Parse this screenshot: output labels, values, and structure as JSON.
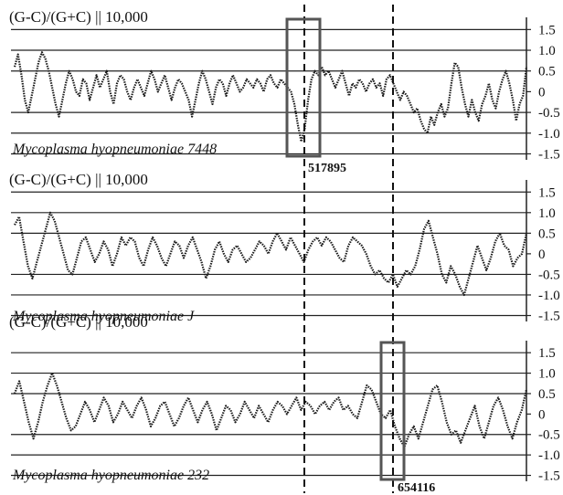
{
  "chart_data": {
    "type": "line",
    "panels": [
      {
        "ylabel": "(G-C)/(G+C)  ||  10,000",
        "genome": "Mycoplasma hyopneumoniae 7448",
        "yticks": [
          "1.5",
          "1.0",
          "0.5",
          "0",
          "-0.5",
          "-1.0",
          "-1.5"
        ],
        "ylim": [
          -1.6,
          1.75
        ],
        "series": [
          {
            "values": [
              0.6,
              0.9,
              0.4,
              -0.2,
              -0.5,
              -0.1,
              0.3,
              0.7,
              0.95,
              0.8,
              0.5,
              0.1,
              -0.3,
              -0.6,
              -0.2,
              0.2,
              0.5,
              0.3,
              0.0,
              -0.1,
              0.3,
              0.2,
              -0.2,
              0.1,
              0.4,
              0.1,
              0.3,
              0.5,
              0.0,
              -0.3,
              0.2,
              0.4,
              0.3,
              0.0,
              -0.2,
              0.1,
              0.3,
              0.1,
              -0.1,
              0.2,
              0.5,
              0.3,
              0.0,
              0.2,
              0.4,
              0.1,
              -0.2,
              0.1,
              0.3,
              0.2,
              0.0,
              -0.2,
              -0.6,
              -0.2,
              0.2,
              0.5,
              0.3,
              0.0,
              -0.3,
              0.1,
              0.3,
              0.2,
              -0.1,
              0.2,
              0.4,
              0.2,
              0.0,
              0.1,
              0.3,
              0.2,
              0.1,
              0.3,
              0.2,
              0.0,
              0.3,
              0.4,
              0.2,
              0.1,
              0.3,
              0.2,
              0.1,
              0.0,
              -0.3,
              -0.8,
              -1.2,
              -0.9,
              -0.2,
              0.3,
              0.5,
              0.4,
              0.6,
              0.4,
              0.5,
              0.3,
              0.1,
              0.3,
              0.5,
              0.2,
              -0.1,
              0.2,
              0.1,
              0.3,
              0.2,
              0.0,
              0.2,
              0.3,
              0.1,
              0.2,
              -0.1,
              0.3,
              0.4,
              0.2,
              0.0,
              -0.2,
              0.0,
              -0.1,
              -0.3,
              -0.5,
              -0.4,
              -0.7,
              -0.9,
              -1.0,
              -0.6,
              -0.8,
              -0.5,
              -0.3,
              -0.6,
              -0.4,
              0.2,
              0.7,
              0.6,
              0.1,
              -0.3,
              -0.6,
              -0.2,
              -0.5,
              -0.7,
              -0.3,
              -0.1,
              0.2,
              -0.2,
              -0.4,
              0.0,
              0.3,
              0.5,
              0.2,
              -0.2,
              -0.7,
              -0.3,
              -0.1,
              0.6
            ]
          }
        ],
        "box_marker": "517895"
      },
      {
        "ylabel": "(G-C)/(G+C)  ||  10,000",
        "genome": "Mycoplasma hyopneumoniae J",
        "yticks": [
          "1.5",
          "1.0",
          "0.5",
          "0",
          "-0.5",
          "-1.0",
          "-1.5"
        ],
        "ylim": [
          -1.6,
          1.75
        ],
        "series": [
          {
            "values": [
              0.7,
              0.9,
              0.3,
              -0.3,
              -0.6,
              -0.2,
              0.2,
              0.6,
              1.0,
              0.8,
              0.4,
              0.0,
              -0.4,
              -0.5,
              -0.1,
              0.3,
              0.4,
              0.1,
              -0.2,
              0.0,
              0.3,
              0.1,
              -0.3,
              0.0,
              0.4,
              0.2,
              0.4,
              0.3,
              -0.1,
              -0.3,
              0.1,
              0.4,
              0.2,
              -0.1,
              -0.3,
              0.0,
              0.3,
              0.2,
              -0.1,
              0.2,
              0.4,
              0.1,
              -0.2,
              -0.6,
              -0.3,
              0.1,
              0.3,
              0.0,
              -0.2,
              0.1,
              0.2,
              0.0,
              -0.2,
              -0.1,
              0.1,
              0.3,
              0.2,
              0.0,
              0.3,
              0.5,
              0.3,
              0.1,
              0.4,
              0.2,
              0.0,
              -0.2,
              0.1,
              0.3,
              0.4,
              0.2,
              0.4,
              0.3,
              0.1,
              -0.1,
              -0.2,
              0.2,
              0.4,
              0.3,
              0.2,
              0.0,
              -0.3,
              -0.5,
              -0.4,
              -0.6,
              -0.7,
              -0.5,
              -0.8,
              -0.6,
              -0.4,
              -0.5,
              -0.3,
              0.1,
              0.6,
              0.8,
              0.4,
              0.0,
              -0.5,
              -0.7,
              -0.3,
              -0.5,
              -0.8,
              -1.0,
              -0.6,
              -0.2,
              0.2,
              -0.1,
              -0.4,
              -0.1,
              0.3,
              0.5,
              0.2,
              0.1,
              -0.3,
              -0.1,
              0.0,
              0.5
            ]
          }
        ]
      },
      {
        "ylabel": "(G-C)/(G+C)  ||  10,000",
        "genome": "Mycoplasma hyopneumoniae 232",
        "yticks": [
          "1.5",
          "1.0",
          "0.5",
          "0",
          "-0.5",
          "-1.0",
          "-1.5"
        ],
        "ylim": [
          -1.6,
          1.75
        ],
        "series": [
          {
            "values": [
              0.5,
              0.8,
              0.3,
              -0.2,
              -0.6,
              -0.2,
              0.3,
              0.7,
              1.0,
              0.7,
              0.3,
              -0.1,
              -0.4,
              -0.3,
              0.0,
              0.3,
              0.1,
              -0.2,
              0.1,
              0.4,
              0.2,
              -0.2,
              0.0,
              0.3,
              0.1,
              -0.1,
              0.2,
              0.4,
              0.1,
              -0.3,
              -0.1,
              0.2,
              0.3,
              0.0,
              -0.3,
              -0.1,
              0.2,
              0.4,
              0.1,
              -0.2,
              0.1,
              0.3,
              0.0,
              -0.4,
              -0.1,
              0.2,
              0.1,
              -0.2,
              0.0,
              0.3,
              0.1,
              -0.1,
              0.2,
              0.0,
              -0.2,
              0.1,
              0.3,
              0.2,
              0.0,
              0.2,
              0.4,
              0.1,
              0.3,
              0.2,
              0.0,
              0.2,
              0.3,
              0.1,
              0.3,
              0.4,
              0.1,
              0.2,
              0.0,
              -0.1,
              0.3,
              0.7,
              0.6,
              0.3,
              0.0,
              -0.1,
              0.1,
              -0.3,
              -0.6,
              -0.8,
              -0.5,
              -0.3,
              -0.6,
              -0.2,
              0.2,
              0.6,
              0.7,
              0.3,
              -0.2,
              -0.5,
              -0.4,
              -0.7,
              -0.4,
              -0.1,
              0.2,
              -0.3,
              -0.6,
              -0.2,
              0.2,
              0.4,
              0.1,
              -0.3,
              -0.6,
              -0.2,
              0.1,
              0.6
            ]
          }
        ],
        "box_marker": "654116"
      }
    ]
  }
}
